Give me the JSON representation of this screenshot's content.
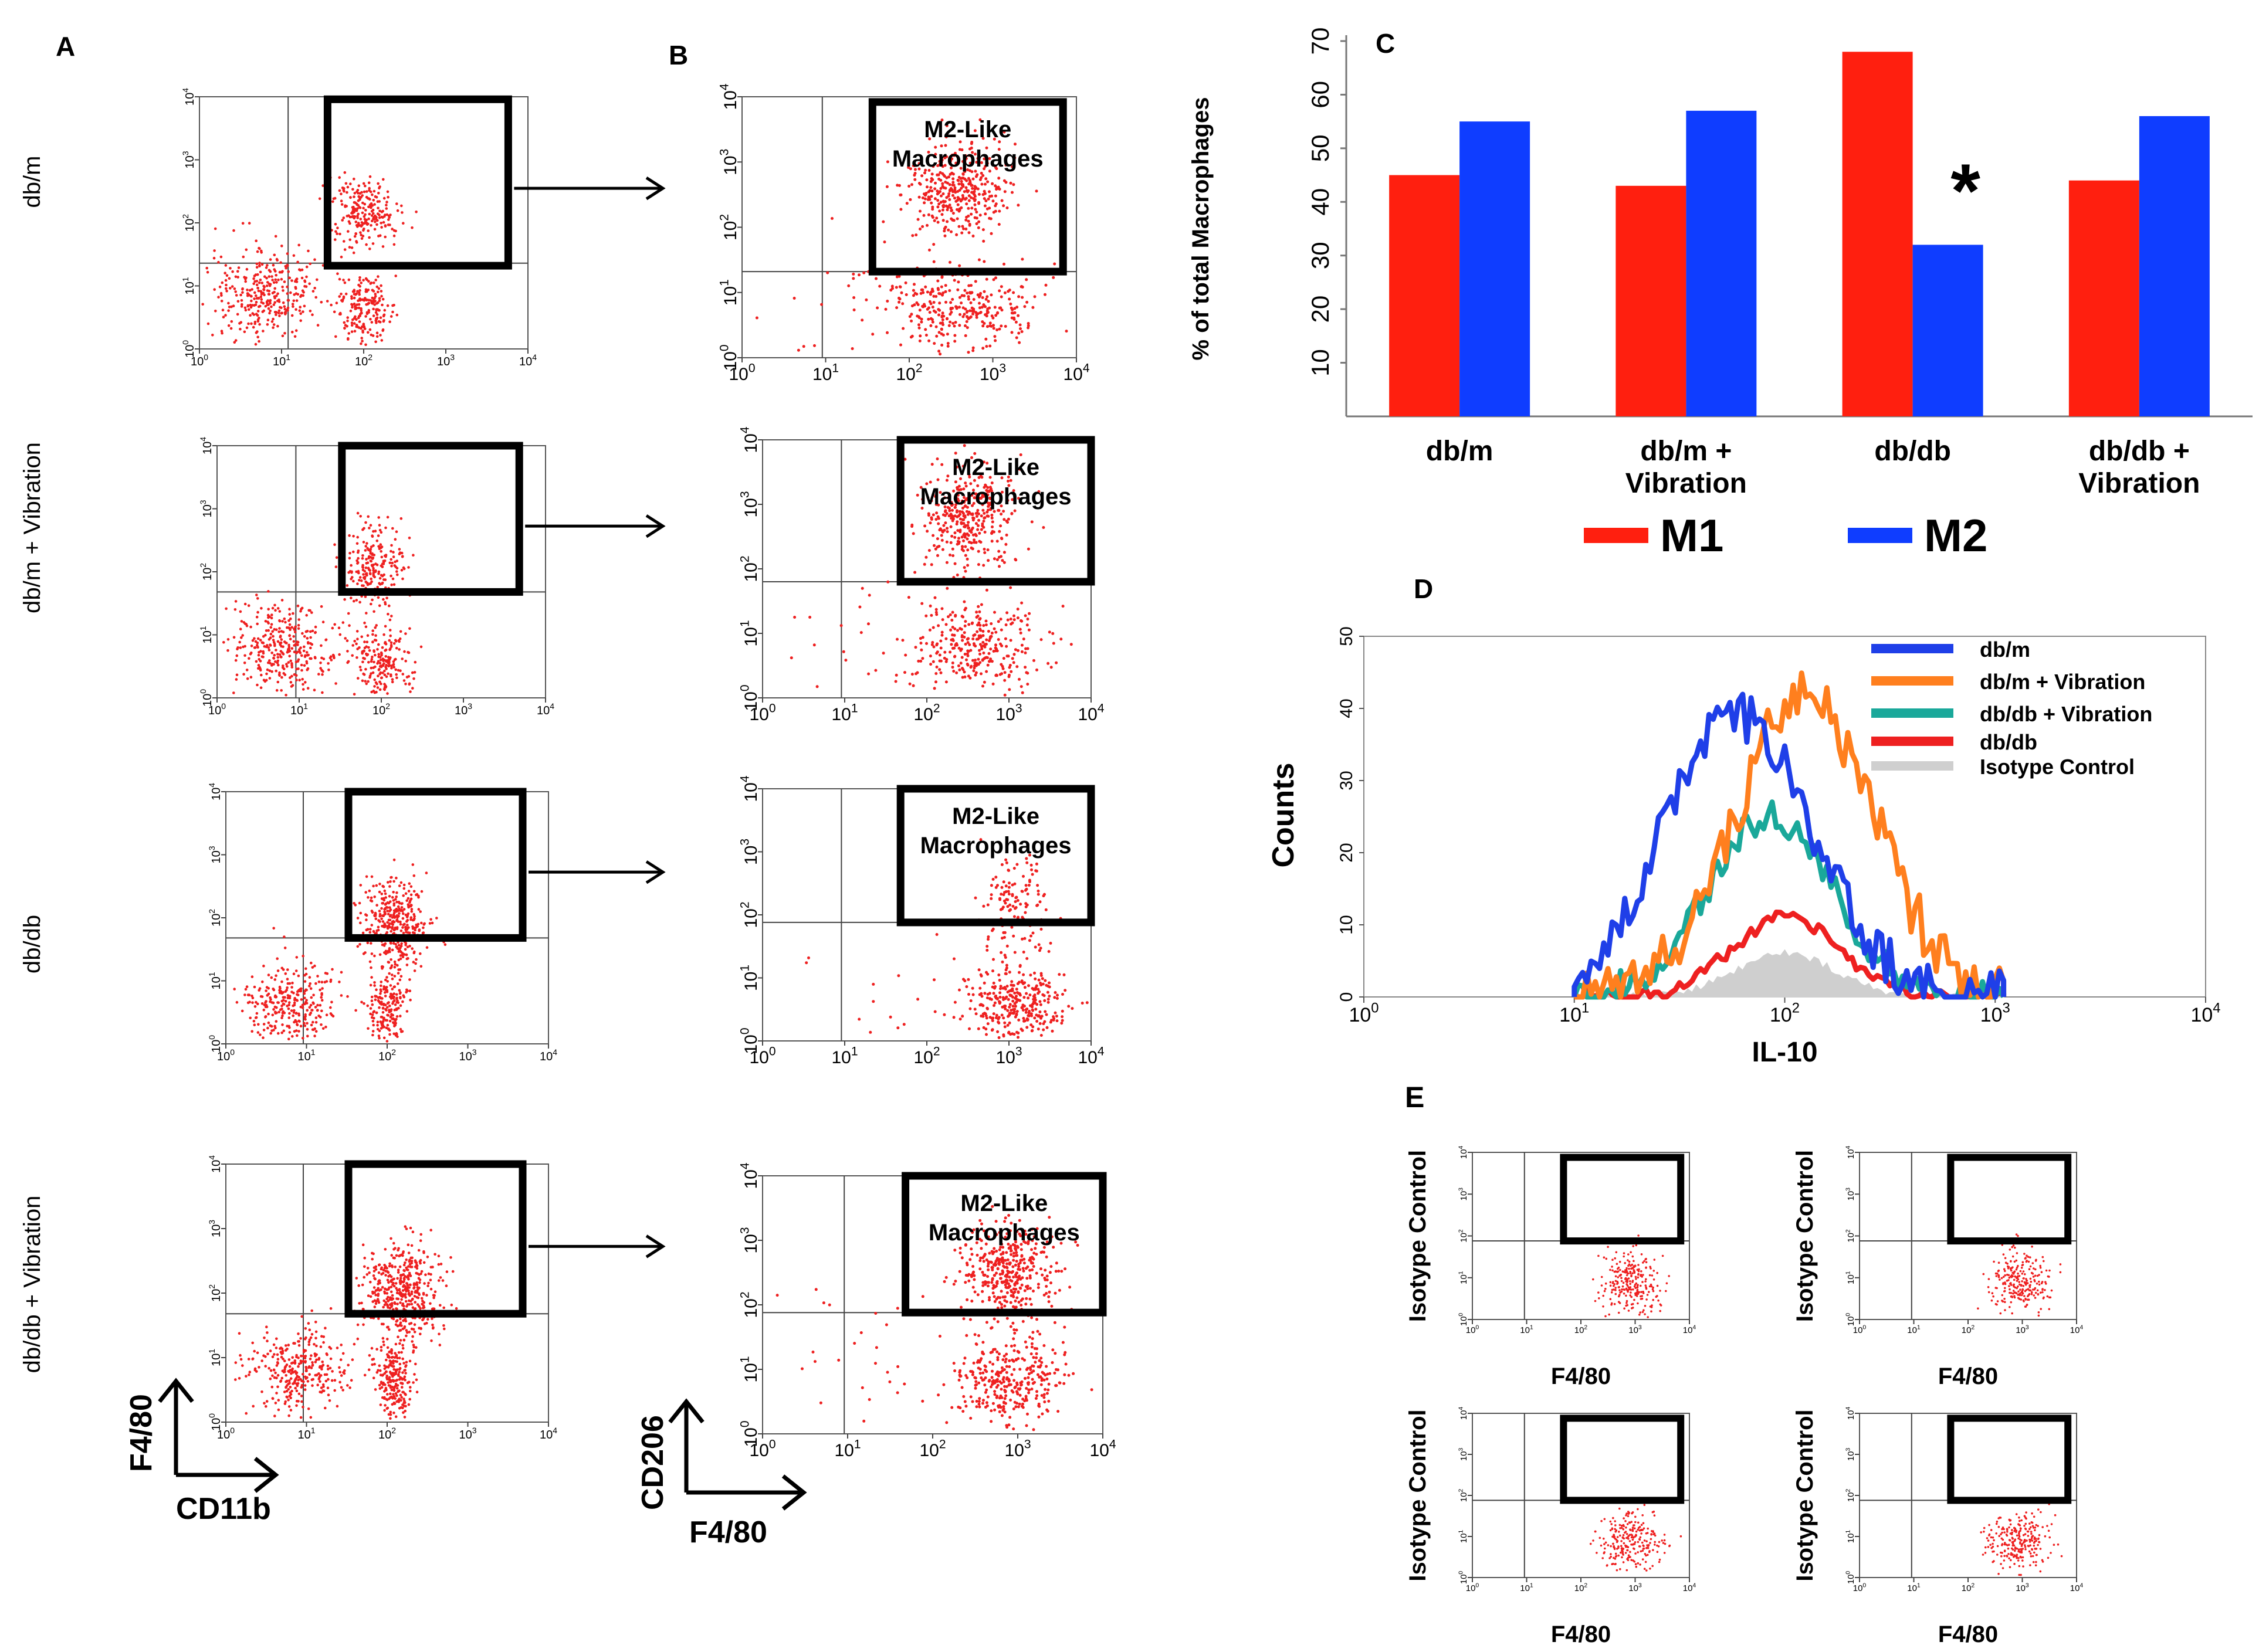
{
  "panels": {
    "A": {
      "label": "A",
      "rows": [
        {
          "label": "db/m"
        },
        {
          "label": "db/m + Vibration"
        },
        {
          "label": "db/db"
        },
        {
          "label": "db/db + Vibration"
        }
      ],
      "y_axis": "F4/80",
      "x_axis": "CD11b"
    },
    "B": {
      "label": "B",
      "gate_label_line1": "M2-Like",
      "gate_label_line2": "Macrophages",
      "y_axis": "CD206",
      "x_axis": "F4/80"
    },
    "E": {
      "label": "E",
      "y_label": "Isotype Control",
      "x_label": "F4/80"
    }
  },
  "flow_tick_labels": [
    "10^0",
    "10^1",
    "10^2",
    "10^3",
    "10^4"
  ],
  "chart_data": [
    {
      "panel": "C",
      "label": "C",
      "type": "bar",
      "categories": [
        "db/m",
        "db/m + Vibration",
        "db/db",
        "db/db + Vibration"
      ],
      "series": [
        {
          "name": "M1",
          "values": [
            45,
            43,
            68,
            44
          ],
          "color": "#ff1f0f"
        },
        {
          "name": "M2",
          "values": [
            55,
            57,
            32,
            56
          ],
          "color": "#0f3dff"
        }
      ],
      "ylabel": "% of total Macrophages",
      "ylim": [
        0,
        70
      ],
      "yticks": [
        10,
        20,
        30,
        40,
        50,
        60,
        70
      ],
      "annotation": "*",
      "annotation_category": "db/db"
    },
    {
      "panel": "D",
      "label": "D",
      "type": "line",
      "title": "",
      "xlabel": "IL-10",
      "ylabel": "Counts",
      "xscale": "log",
      "xlim": [
        1,
        10000
      ],
      "ylim": [
        0,
        50
      ],
      "yticks": [
        0,
        10,
        20,
        30,
        40,
        50
      ],
      "legend": "top-right",
      "series": [
        {
          "name": "db/m",
          "color": "#1f3fe8",
          "peak_x": 60,
          "peak_y": 39,
          "width": 0.5
        },
        {
          "name": "db/m + Vibration",
          "color": "#ff7f1e",
          "peak_x": 125,
          "peak_y": 42,
          "width": 0.46
        },
        {
          "name": "db/db + Vibration",
          "color": "#1aa89a",
          "peak_x": 85,
          "peak_y": 25,
          "width": 0.42
        },
        {
          "name": "db/db",
          "color": "#ee2020",
          "peak_x": 100,
          "peak_y": 11,
          "width": 0.36
        },
        {
          "name": "Isotype Control",
          "color": "#cfcfcf",
          "peak_x": 100,
          "peak_y": 6,
          "width": 0.33
        }
      ]
    }
  ]
}
